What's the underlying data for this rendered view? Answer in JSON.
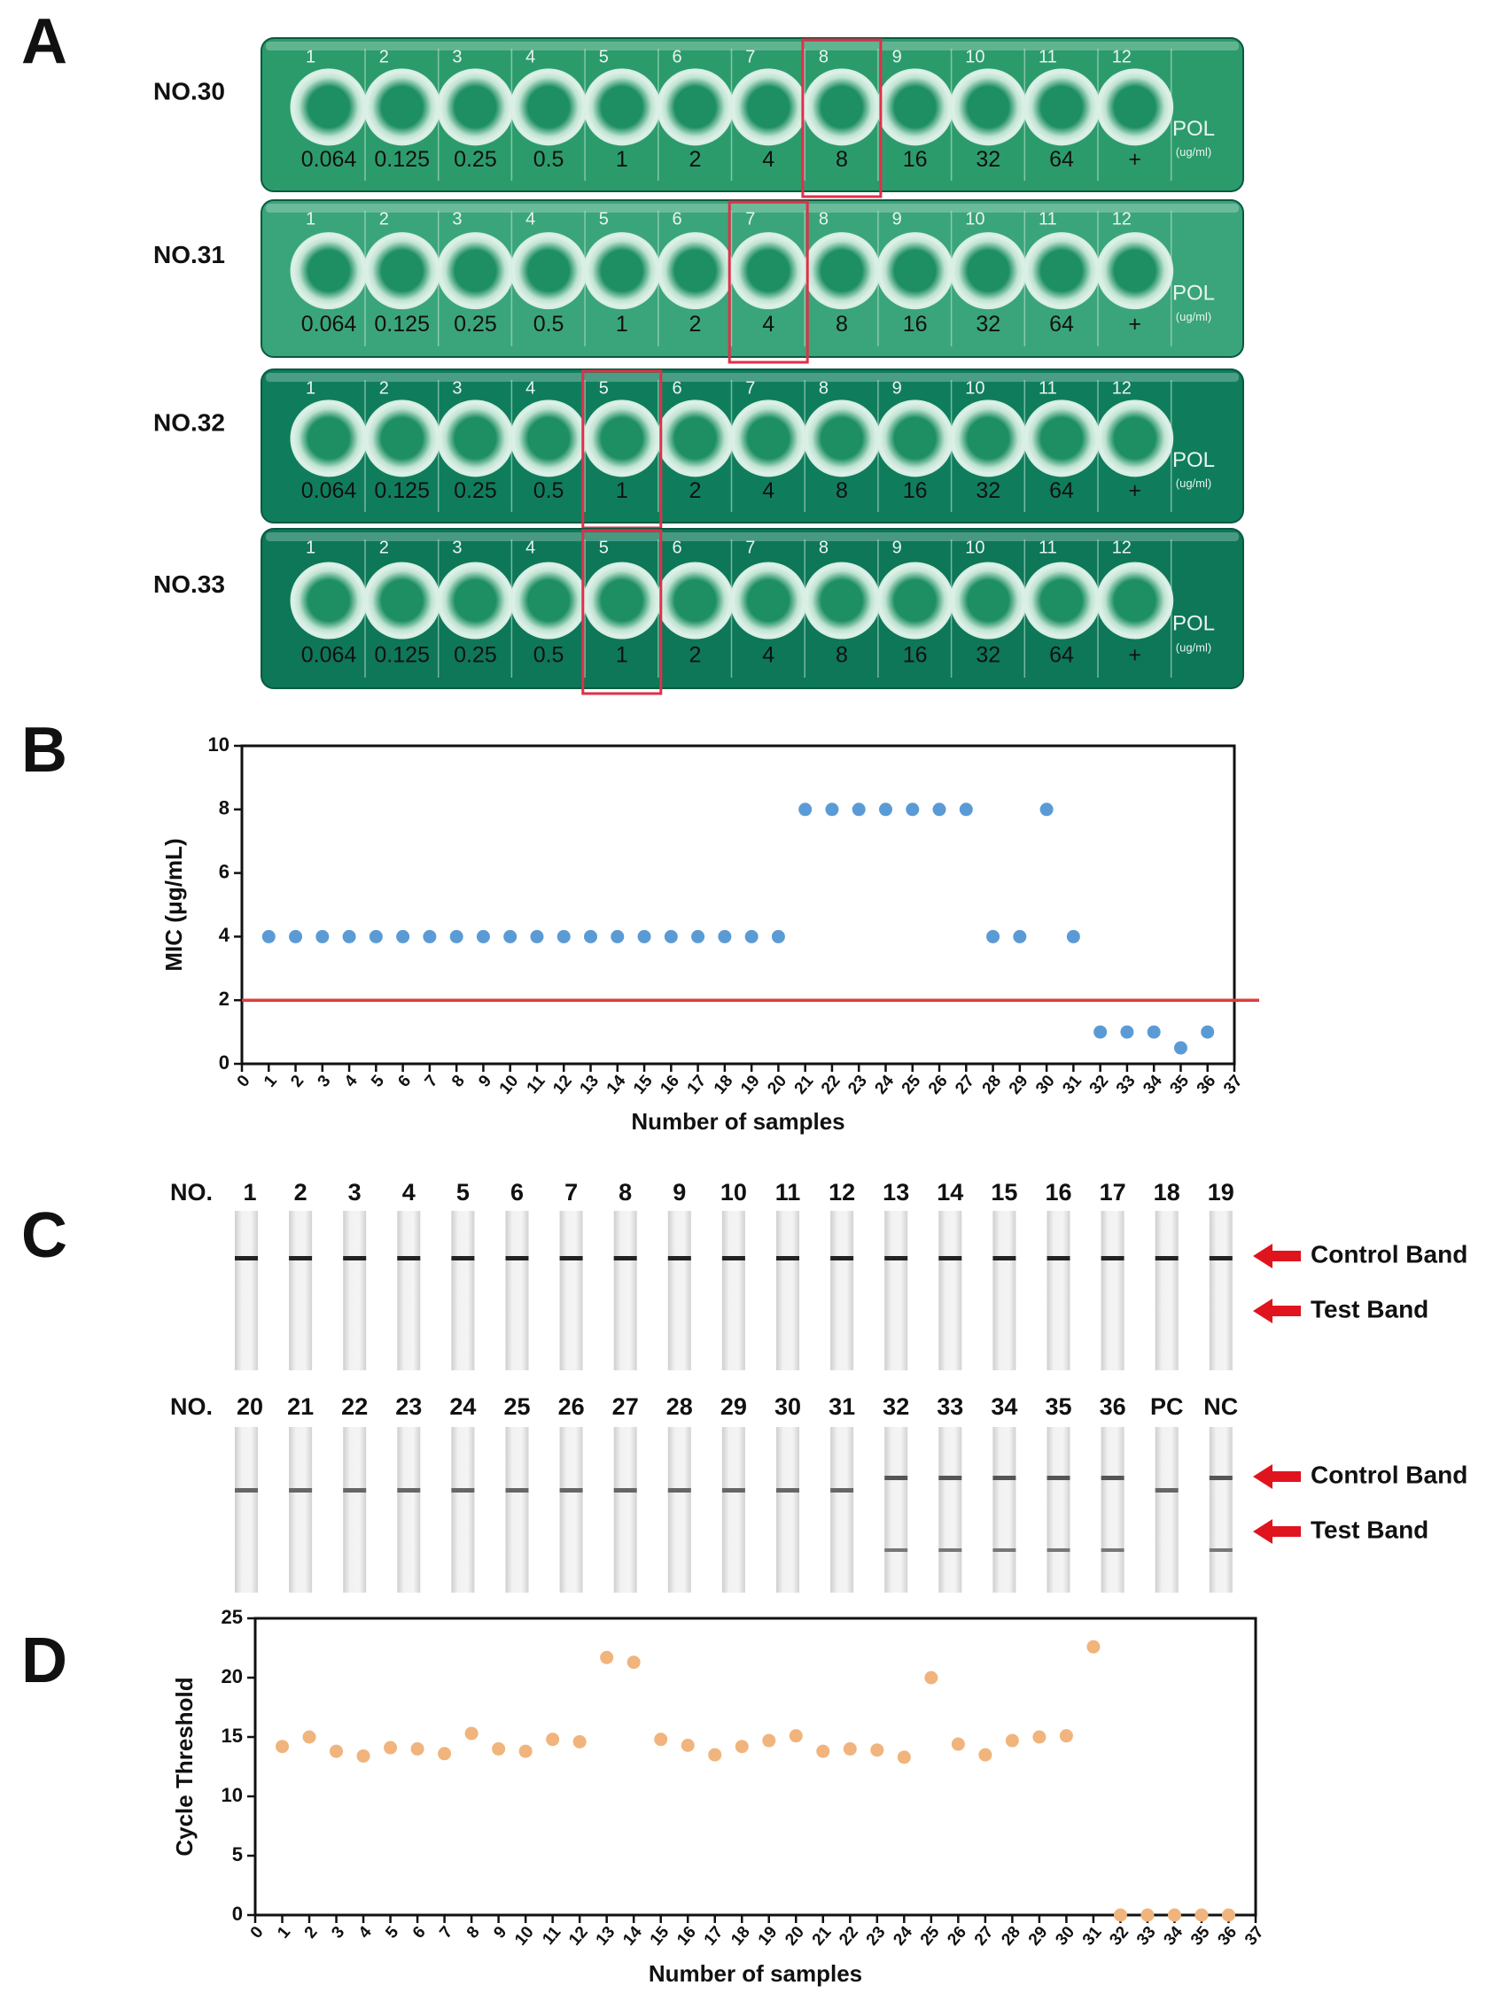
{
  "panel_labels": [
    "A",
    "B",
    "C",
    "D"
  ],
  "panel_a": {
    "wells": [
      "1",
      "2",
      "3",
      "4",
      "5",
      "6",
      "7",
      "8",
      "9",
      "10",
      "11",
      "12"
    ],
    "concentrations": [
      "0.064",
      "0.125",
      "0.25",
      "0.5",
      "1",
      "2",
      "4",
      "8",
      "16",
      "32",
      "64",
      "+"
    ],
    "drug": "POL",
    "unit": "(ug/ml)",
    "plates": [
      {
        "name": "NO.30",
        "highlight_well": 8,
        "color": "#2c9b6c"
      },
      {
        "name": "NO.31",
        "highlight_well": 7,
        "color": "#3aa57a"
      },
      {
        "name": "NO.32",
        "highlight_well": 5,
        "color": "#0f7d5c"
      },
      {
        "name": "NO.33",
        "highlight_well": 5,
        "color": "#0d7758"
      }
    ]
  },
  "panel_c": {
    "prefix": "NO.",
    "control_label": "Control Band",
    "test_label": "Test Band",
    "rows": [
      {
        "labels": [
          "1",
          "2",
          "3",
          "4",
          "5",
          "6",
          "7",
          "8",
          "9",
          "10",
          "11",
          "12",
          "13",
          "14",
          "15",
          "16",
          "17",
          "18",
          "19"
        ],
        "test_band": [
          false,
          false,
          false,
          false,
          false,
          false,
          false,
          false,
          false,
          false,
          false,
          false,
          false,
          false,
          false,
          false,
          false,
          false,
          false
        ]
      },
      {
        "labels": [
          "20",
          "21",
          "22",
          "23",
          "24",
          "25",
          "26",
          "27",
          "28",
          "29",
          "30",
          "31",
          "32",
          "33",
          "34",
          "35",
          "36",
          "PC",
          "NC"
        ],
        "test_band": [
          false,
          false,
          false,
          false,
          false,
          false,
          false,
          false,
          false,
          false,
          false,
          false,
          true,
          true,
          true,
          true,
          true,
          false,
          true
        ]
      }
    ]
  },
  "chart_data": [
    {
      "type": "scatter",
      "xlabel": "Number of samples",
      "ylabel": "MIC (μg/mL)",
      "color": "#5b9bd5",
      "x": [
        1,
        2,
        3,
        4,
        5,
        6,
        7,
        8,
        9,
        10,
        11,
        12,
        13,
        14,
        15,
        16,
        17,
        18,
        19,
        20,
        21,
        22,
        23,
        24,
        25,
        26,
        27,
        28,
        29,
        30,
        31,
        32,
        33,
        34,
        35,
        36
      ],
      "values": [
        4,
        4,
        4,
        4,
        4,
        4,
        4,
        4,
        4,
        4,
        4,
        4,
        4,
        4,
        4,
        4,
        4,
        4,
        4,
        4,
        8,
        8,
        8,
        8,
        8,
        8,
        8,
        4,
        4,
        8,
        4,
        1,
        1,
        1,
        0.5,
        1
      ],
      "xlim": [
        0,
        37
      ],
      "xticks": [
        0,
        1,
        2,
        3,
        4,
        5,
        6,
        7,
        8,
        9,
        10,
        11,
        12,
        13,
        14,
        15,
        16,
        17,
        18,
        19,
        20,
        21,
        22,
        23,
        24,
        25,
        26,
        27,
        28,
        29,
        30,
        31,
        32,
        33,
        34,
        35,
        36,
        37
      ],
      "ylim": [
        0,
        10
      ],
      "yticks": [
        0,
        2,
        4,
        6,
        8,
        10
      ],
      "hline": 2,
      "hline_color": "#e03c3c"
    },
    {
      "type": "scatter",
      "xlabel": "Number of samples",
      "ylabel": "Cycle Threshold",
      "color": "#f0b47c",
      "x": [
        1,
        2,
        3,
        4,
        5,
        6,
        7,
        8,
        9,
        10,
        11,
        12,
        13,
        14,
        15,
        16,
        17,
        18,
        19,
        20,
        21,
        22,
        23,
        24,
        25,
        26,
        27,
        28,
        29,
        30,
        31,
        32,
        33,
        34,
        35,
        36
      ],
      "values": [
        14.2,
        15.0,
        13.8,
        13.4,
        14.1,
        14.0,
        13.6,
        15.3,
        14.0,
        13.8,
        14.8,
        14.6,
        21.7,
        21.3,
        14.8,
        14.3,
        13.5,
        14.2,
        14.7,
        15.1,
        13.8,
        14.0,
        13.9,
        13.3,
        20.0,
        14.4,
        13.5,
        14.7,
        15.0,
        15.1,
        22.6,
        0,
        0,
        0,
        0,
        0
      ],
      "xlim": [
        0,
        37
      ],
      "xticks": [
        0,
        1,
        2,
        3,
        4,
        5,
        6,
        7,
        8,
        9,
        10,
        11,
        12,
        13,
        14,
        15,
        16,
        17,
        18,
        19,
        20,
        21,
        22,
        23,
        24,
        25,
        26,
        27,
        28,
        29,
        30,
        31,
        32,
        33,
        34,
        35,
        36,
        37
      ],
      "ylim": [
        0,
        25
      ],
      "yticks": [
        0,
        5,
        10,
        15,
        20,
        25
      ]
    }
  ]
}
